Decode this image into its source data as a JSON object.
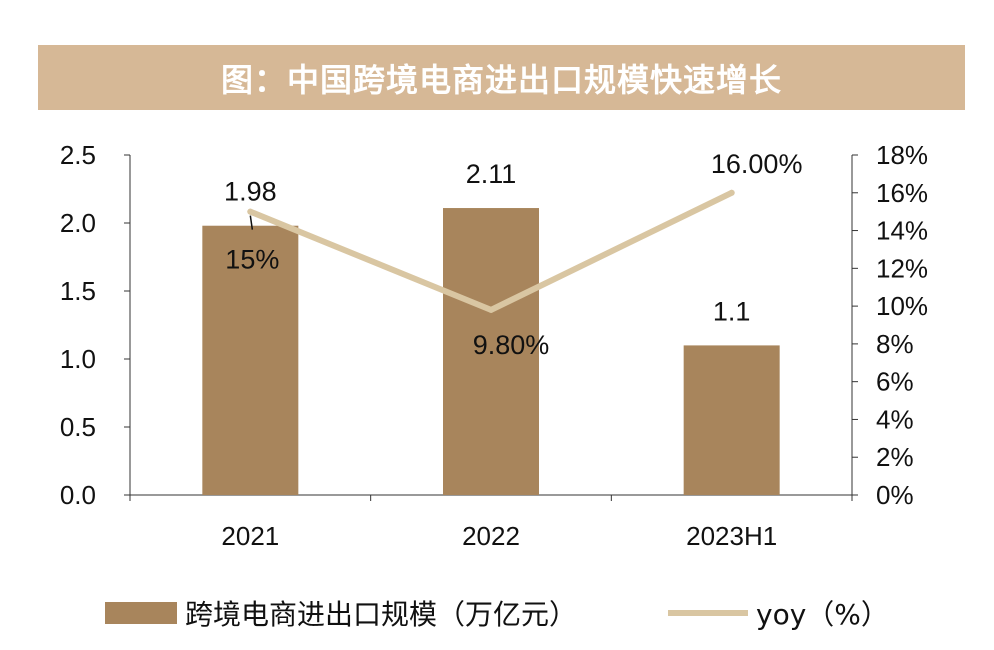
{
  "title": "图：中国跨境电商进出口规模快速增长",
  "colors": {
    "bar": "#a8855c",
    "line": "#d9c6a2",
    "title_bg": "#d6b896"
  },
  "chart_data": {
    "type": "bar",
    "categories": [
      "2021",
      "2022",
      "2023H1"
    ],
    "series": [
      {
        "name": "跨境电商进出口规模（万亿元）",
        "type": "bar",
        "axis": "left",
        "values": [
          1.98,
          2.11,
          1.1
        ],
        "labels": [
          "1.98",
          "2.11",
          "1.1"
        ]
      },
      {
        "name": "yoy（%）",
        "type": "line",
        "axis": "right",
        "values": [
          15,
          9.8,
          16
        ],
        "labels": [
          "15%",
          "9.80%",
          "16.00%"
        ]
      }
    ],
    "left_axis": {
      "ylim": [
        0,
        2.5
      ],
      "ticks": [
        "0.0",
        "0.5",
        "1.0",
        "1.5",
        "2.0",
        "2.5"
      ]
    },
    "right_axis": {
      "ylim": [
        0,
        18
      ],
      "ticks": [
        "0%",
        "2%",
        "4%",
        "6%",
        "8%",
        "10%",
        "12%",
        "14%",
        "16%",
        "18%"
      ]
    },
    "legend_position": "bottom",
    "grid": false
  }
}
